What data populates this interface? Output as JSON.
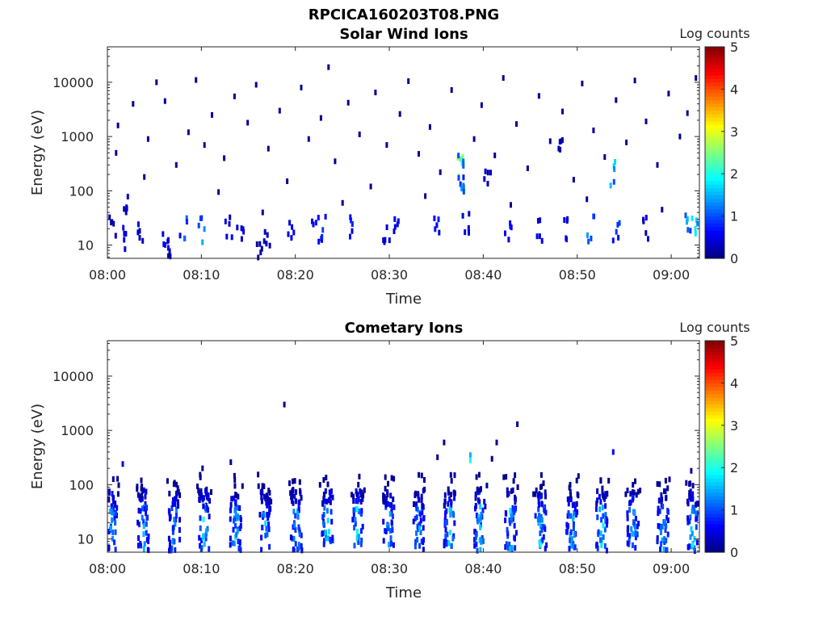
{
  "figure_title": "RPCICA160203T08.PNG",
  "colors": {
    "colormap": [
      "#00007f",
      "#0000ff",
      "#007fff",
      "#00ffff",
      "#7fff7f",
      "#ffff00",
      "#ff7f00",
      "#ff0000",
      "#7f0000"
    ],
    "axes": "#262626"
  },
  "chart_data": [
    {
      "type": "heatmap",
      "title": "Solar Wind Ions",
      "xlabel": "Time",
      "ylabel": "Energy (eV)",
      "x_unit": "minutes after 08:00",
      "xlim": [
        0,
        63
      ],
      "x_ticks": [
        0,
        10,
        20,
        30,
        40,
        50,
        60
      ],
      "x_tick_labels": [
        "08:00",
        "08:10",
        "08:20",
        "08:30",
        "08:40",
        "08:50",
        "09:00"
      ],
      "y_scale": "log",
      "ylim": [
        5.7,
        45000
      ],
      "y_ticks": [
        10,
        100,
        1000,
        10000
      ],
      "y_tick_labels": [
        "10",
        "100",
        "1000",
        "10000"
      ],
      "colorbar": {
        "label": "Log counts",
        "range": [
          0,
          5
        ],
        "ticks": [
          0,
          1,
          2,
          3,
          4,
          5
        ],
        "tick_labels": [
          "0",
          "1",
          "2",
          "3",
          "4",
          "5"
        ]
      },
      "note_pixels": "sparse single-count pixels scattered 10 eV to 10 keV; denser near 10-30 eV",
      "cells": [
        [
          0.5,
          20,
          0.2
        ],
        [
          1.5,
          13,
          0.5
        ],
        [
          2.0,
          60,
          0.3
        ],
        [
          3.3,
          20,
          0.4
        ],
        [
          6.0,
          10,
          0.6
        ],
        [
          6.7,
          7,
          0.3
        ],
        [
          8.0,
          20,
          1.0
        ],
        [
          10.0,
          20,
          1.3
        ],
        [
          12.8,
          20,
          0.5
        ],
        [
          14.0,
          13,
          0.5
        ],
        [
          16.0,
          8,
          0.2
        ],
        [
          16.8,
          10,
          0.3
        ],
        [
          19.5,
          20,
          0.5
        ],
        [
          22.0,
          20,
          0.6
        ],
        [
          23.0,
          20,
          0.8
        ],
        [
          26.0,
          20,
          0.7
        ],
        [
          29.5,
          20,
          0.5
        ],
        [
          30.5,
          20,
          0.5
        ],
        [
          34.8,
          20,
          0.6
        ],
        [
          37.5,
          250,
          2.4
        ],
        [
          37.5,
          150,
          1.2
        ],
        [
          38.0,
          30,
          0.5
        ],
        [
          42.5,
          20,
          0.6
        ],
        [
          45.8,
          20,
          0.5
        ],
        [
          48.5,
          20,
          0.6
        ],
        [
          51.3,
          20,
          1.2
        ],
        [
          53.8,
          200,
          1.6
        ],
        [
          54.0,
          20,
          1.0
        ],
        [
          57.3,
          20,
          0.4
        ],
        [
          61.8,
          20,
          1.4
        ],
        [
          62.3,
          20,
          1.6
        ],
        [
          37.5,
          300,
          1.0
        ],
        [
          48.0,
          600,
          0.3
        ],
        [
          40.3,
          200,
          0.3
        ]
      ],
      "scatter_pixels": [
        [
          0.8,
          500,
          0.1
        ],
        [
          1.0,
          1600,
          0.1
        ],
        [
          2.6,
          4000,
          0.1
        ],
        [
          4.2,
          900,
          0.1
        ],
        [
          5.1,
          10000,
          0.1
        ],
        [
          6.0,
          4500,
          0.1
        ],
        [
          7.2,
          300,
          0.1
        ],
        [
          8.5,
          1200,
          0.1
        ],
        [
          9.3,
          11000,
          0.1
        ],
        [
          10.2,
          700,
          0.1
        ],
        [
          11.0,
          2500,
          0.1
        ],
        [
          12.3,
          400,
          0.1
        ],
        [
          13.4,
          5500,
          0.1
        ],
        [
          14.8,
          1800,
          0.1
        ],
        [
          15.7,
          9000,
          0.1
        ],
        [
          17.0,
          600,
          0.1
        ],
        [
          18.2,
          3000,
          0.1
        ],
        [
          19.0,
          150,
          0.1
        ],
        [
          20.5,
          8000,
          0.1
        ],
        [
          21.3,
          900,
          0.1
        ],
        [
          22.6,
          2200,
          0.1
        ],
        [
          23.4,
          19000,
          0.1
        ],
        [
          24.1,
          350,
          0.1
        ],
        [
          25.5,
          4200,
          0.1
        ],
        [
          26.7,
          1100,
          0.1
        ],
        [
          27.9,
          120,
          0.1
        ],
        [
          28.4,
          6500,
          0.1
        ],
        [
          29.6,
          700,
          0.1
        ],
        [
          31.0,
          2600,
          0.1
        ],
        [
          31.9,
          10500,
          0.1
        ],
        [
          33.0,
          480,
          0.1
        ],
        [
          34.2,
          1500,
          0.1
        ],
        [
          35.3,
          220,
          0.1
        ],
        [
          36.5,
          7200,
          0.1
        ],
        [
          38.9,
          900,
          0.1
        ],
        [
          39.7,
          3800,
          0.1
        ],
        [
          41.1,
          450,
          0.1
        ],
        [
          42.0,
          12000,
          0.1
        ],
        [
          43.4,
          1700,
          0.1
        ],
        [
          44.6,
          260,
          0.1
        ],
        [
          45.8,
          5600,
          0.1
        ],
        [
          47.0,
          820,
          0.1
        ],
        [
          48.3,
          2900,
          0.1
        ],
        [
          49.5,
          160,
          0.1
        ],
        [
          50.4,
          9500,
          0.1
        ],
        [
          51.6,
          1300,
          0.1
        ],
        [
          52.8,
          420,
          0.1
        ],
        [
          54.0,
          4700,
          0.1
        ],
        [
          55.1,
          780,
          0.1
        ],
        [
          56.0,
          10800,
          0.1
        ],
        [
          57.2,
          1900,
          0.1
        ],
        [
          58.4,
          300,
          0.1
        ],
        [
          59.6,
          6200,
          0.1
        ],
        [
          60.8,
          1000,
          0.1
        ],
        [
          61.6,
          2700,
          0.1
        ],
        [
          62.5,
          12000,
          0.1
        ],
        [
          3.8,
          180,
          0.1
        ],
        [
          11.7,
          95,
          0.1
        ],
        [
          16.4,
          40,
          0.1
        ],
        [
          24.9,
          60,
          0.1
        ],
        [
          33.7,
          80,
          0.1
        ],
        [
          42.8,
          55,
          0.1
        ],
        [
          50.9,
          70,
          0.1
        ],
        [
          58.9,
          45,
          0.1
        ]
      ]
    },
    {
      "type": "heatmap",
      "title": "Cometary Ions",
      "xlabel": "Time",
      "ylabel": "Energy (eV)",
      "x_unit": "minutes after 08:00",
      "xlim": [
        0,
        63
      ],
      "x_ticks": [
        0,
        10,
        20,
        30,
        40,
        50,
        60
      ],
      "x_tick_labels": [
        "08:00",
        "08:10",
        "08:20",
        "08:30",
        "08:40",
        "08:50",
        "09:00"
      ],
      "y_scale": "log",
      "ylim": [
        5.7,
        45000
      ],
      "y_ticks": [
        10,
        100,
        1000,
        10000
      ],
      "y_tick_labels": [
        "10",
        "100",
        "1000",
        "10000"
      ],
      "colorbar": {
        "label": "Log counts",
        "range": [
          0,
          5
        ],
        "ticks": [
          0,
          1,
          2,
          3,
          4,
          5
        ],
        "tick_labels": [
          "0",
          "1",
          "2",
          "3",
          "4",
          "5"
        ]
      },
      "bursts": [
        {
          "t": 0.3,
          "peak": 1.8
        },
        {
          "t": 3.7,
          "peak": 1.6
        },
        {
          "t": 7.0,
          "peak": 1.7
        },
        {
          "t": 10.2,
          "peak": 2.0
        },
        {
          "t": 13.5,
          "peak": 1.8
        },
        {
          "t": 16.7,
          "peak": 1.6
        },
        {
          "t": 20.0,
          "peak": 1.7
        },
        {
          "t": 23.3,
          "peak": 2.0
        },
        {
          "t": 26.5,
          "peak": 1.9
        },
        {
          "t": 29.8,
          "peak": 1.7
        },
        {
          "t": 33.0,
          "peak": 1.6
        },
        {
          "t": 36.3,
          "peak": 1.9
        },
        {
          "t": 39.5,
          "peak": 1.8
        },
        {
          "t": 42.8,
          "peak": 1.7
        },
        {
          "t": 46.0,
          "peak": 1.9
        },
        {
          "t": 49.3,
          "peak": 1.8
        },
        {
          "t": 52.5,
          "peak": 2.0
        },
        {
          "t": 55.8,
          "peak": 1.8
        },
        {
          "t": 59.0,
          "peak": 1.7
        },
        {
          "t": 62.2,
          "peak": 1.9
        }
      ],
      "scatter_pixels": [
        [
          18.7,
          3000,
          0.1
        ],
        [
          43.5,
          1300,
          0.1
        ],
        [
          41.3,
          600,
          0.1
        ],
        [
          35.7,
          600,
          0.1
        ],
        [
          38.5,
          350,
          1.5
        ],
        [
          38.5,
          280,
          2.0
        ],
        [
          53.7,
          400,
          0.6
        ],
        [
          13.0,
          260,
          0.1
        ],
        [
          1.5,
          240,
          0.4
        ],
        [
          40.8,
          300,
          0.1
        ],
        [
          35.0,
          320,
          0.1
        ],
        [
          10.0,
          200,
          0.1
        ],
        [
          62.0,
          180,
          0.1
        ]
      ]
    }
  ]
}
